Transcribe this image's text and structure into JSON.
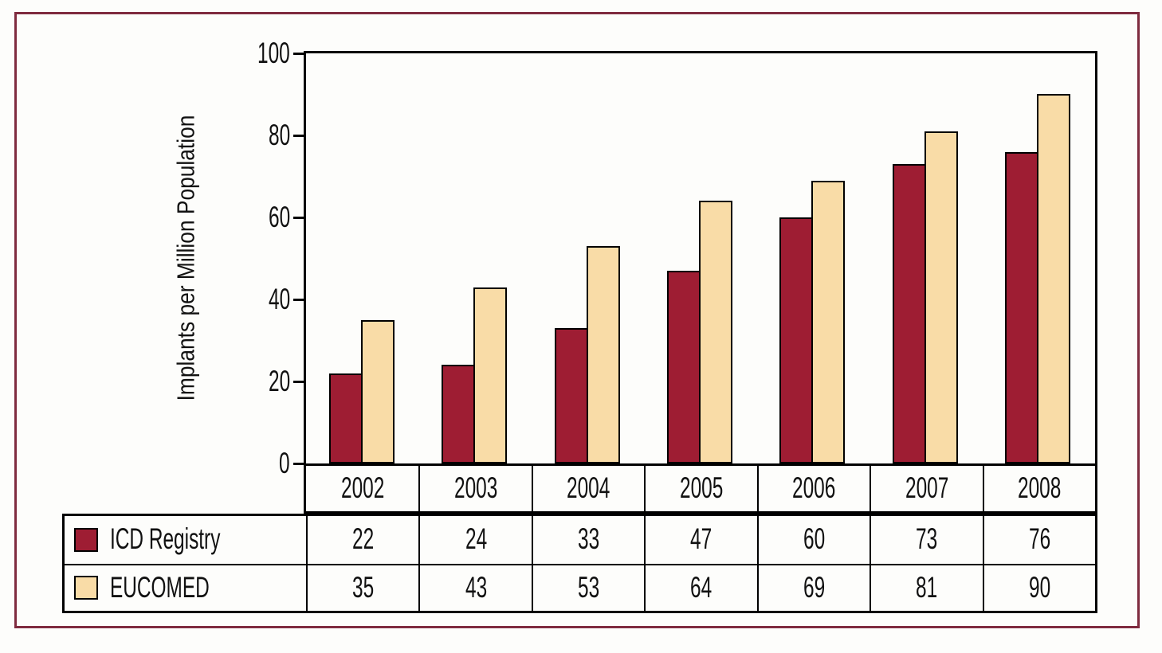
{
  "frame": {
    "border_color": "#7F2B3F",
    "background": "#FDFDFB"
  },
  "chart_data": {
    "type": "bar",
    "title": "",
    "categories": [
      "2002",
      "2003",
      "2004",
      "2005",
      "2006",
      "2007",
      "2008"
    ],
    "series": [
      {
        "name": "ICD Registry",
        "color": "#9E1D33",
        "values": [
          22,
          24,
          33,
          47,
          60,
          73,
          76
        ]
      },
      {
        "name": "EUCOMED",
        "color": "#F9DCA7",
        "values": [
          35,
          43,
          53,
          64,
          69,
          81,
          90
        ]
      }
    ],
    "xlabel": "",
    "ylabel": "Implants per Million Population",
    "ylim": [
      0,
      100
    ],
    "yticks": [
      100,
      80,
      60,
      40,
      20,
      0
    ],
    "grid": false,
    "bar_outline_color": "#000000",
    "axis_color": "#000000",
    "legend_position": "table-below-with-values"
  }
}
